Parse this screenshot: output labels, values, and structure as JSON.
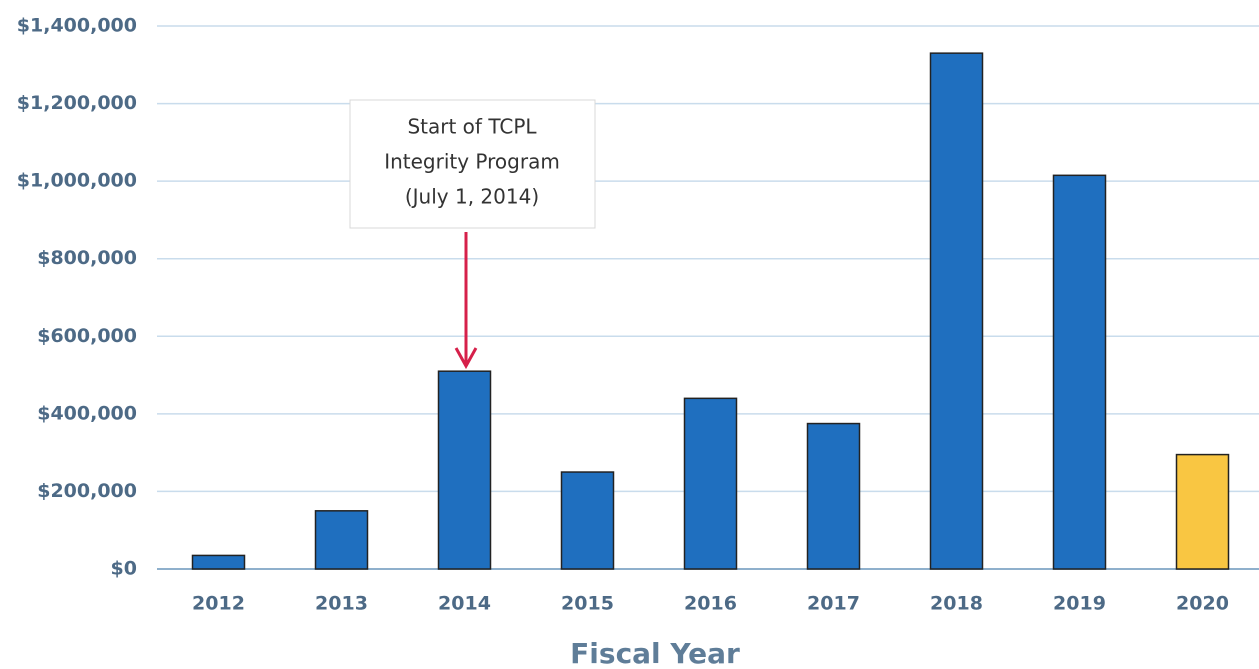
{
  "chart_data": {
    "type": "bar",
    "x_axis_label": "Fiscal Year",
    "categories": [
      "2012",
      "2013",
      "2014",
      "2015",
      "2016",
      "2017",
      "2018",
      "2019",
      "2020"
    ],
    "values": [
      35000,
      150000,
      510000,
      250000,
      440000,
      375000,
      1330000,
      1015000,
      295000
    ],
    "colors": [
      "#1f6fbf",
      "#1f6fbf",
      "#1f6fbf",
      "#1f6fbf",
      "#1f6fbf",
      "#1f6fbf",
      "#1f6fbf",
      "#1f6fbf",
      "#f9c642"
    ],
    "ylim": [
      0,
      1400000
    ],
    "yticks": [
      {
        "value": 0,
        "label": "$0"
      },
      {
        "value": 200000,
        "label": "$200,000"
      },
      {
        "value": 400000,
        "label": "$400,000"
      },
      {
        "value": 600000,
        "label": "$600,000"
      },
      {
        "value": 800000,
        "label": "$800,000"
      },
      {
        "value": 1000000,
        "label": "$1,000,000"
      },
      {
        "value": 1200000,
        "label": "$1,200,000"
      },
      {
        "value": 1400000,
        "label": "$1,400,000"
      }
    ],
    "grid": true,
    "annotation": [
      "Start of TCPL",
      "Integrity Program",
      "(July 1, 2014)"
    ]
  }
}
